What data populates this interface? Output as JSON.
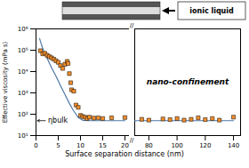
{
  "chart_data": [
    {
      "type": "scatter",
      "ylabel": "Effective viscosity (mPa s)",
      "log": "y",
      "xlim": [
        0,
        21
      ],
      "xticks": [
        0,
        5,
        10,
        15,
        20
      ],
      "ylim": [
        10,
        1000000
      ],
      "yticks": [
        {
          "value": 10,
          "label": "10¹"
        },
        {
          "value": 100,
          "label": "10²"
        },
        {
          "value": 1000,
          "label": "10³"
        },
        {
          "value": 10000,
          "label": "10⁴"
        },
        {
          "value": 100000,
          "label": "10⁵"
        },
        {
          "value": 1000000,
          "label": "10⁶"
        }
      ],
      "series": [
        {
          "type": "line",
          "x": [
            0.8,
            1.5,
            2.5,
            3.5,
            4.5,
            5.5,
            6.5,
            7.5,
            8.5,
            9.5,
            10.5,
            12.0,
            15.0,
            20.0
          ],
          "values": [
            350000,
            120000,
            42000,
            15000,
            6000,
            2200,
            850,
            320,
            140,
            70,
            52,
            50,
            50,
            50
          ]
        },
        {
          "type": "scatter",
          "marker": "square",
          "x": [
            1.0,
            1.5,
            2.0,
            2.5,
            3.0,
            3.5,
            4.0,
            4.5,
            5.0,
            5.5,
            6.0,
            6.5,
            7.0,
            7.2,
            7.5,
            7.8,
            8.0,
            8.5,
            9.0,
            9.5,
            10.0,
            10.5,
            11.0,
            11.5,
            12.0,
            13.0,
            14.0,
            15.0,
            17.0,
            20.0
          ],
          "values": [
            95000,
            68000,
            72000,
            58000,
            50000,
            44000,
            38000,
            32000,
            27000,
            19000,
            14000,
            22000,
            30000,
            24000,
            8000,
            3000,
            1400,
            1200,
            270,
            210,
            88,
            78,
            72,
            63,
            73,
            66,
            68,
            63,
            68,
            70
          ]
        }
      ],
      "annotations": [
        {
          "text": "ηbulk",
          "y": 50
        },
        {
          "text": "//"
        }
      ]
    },
    {
      "type": "scatter",
      "xlabel": "Surface separation distance (nm)",
      "log": "y",
      "xlim": [
        70,
        145
      ],
      "xticks": [
        80,
        100,
        120,
        140
      ],
      "ylim": [
        10,
        1000000
      ],
      "tick_labels": "x",
      "series": [
        {
          "type": "line",
          "x": [
            70,
            75,
            80,
            90,
            100,
            110,
            120,
            130,
            140
          ],
          "values": [
            50,
            50,
            50,
            50,
            50,
            50,
            50,
            50,
            50
          ]
        },
        {
          "type": "scatter",
          "marker": "square",
          "x": [
            75,
            80,
            90,
            95,
            100,
            105,
            110,
            115,
            120,
            125,
            130,
            140
          ],
          "values": [
            58,
            53,
            60,
            56,
            63,
            53,
            58,
            68,
            56,
            63,
            53,
            73
          ]
        }
      ],
      "annotations": [
        {
          "text": "nano-confinement"
        },
        {
          "text": "ionic liquid"
        }
      ]
    }
  ]
}
